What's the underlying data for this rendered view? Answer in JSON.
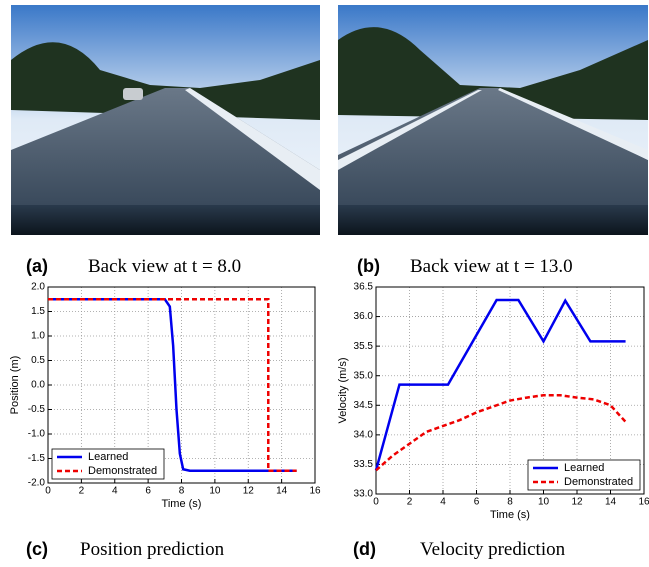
{
  "photos": [
    {
      "label": "(a)",
      "caption": "Back view at t = 8.0"
    },
    {
      "label": "(b)",
      "caption": "Back view at t = 13.0"
    }
  ],
  "chart_data": [
    {
      "type": "line",
      "label": "(c)",
      "caption": "Position prediction",
      "xlabel": "Time (s)",
      "ylabel": "Position (m)",
      "xlim": [
        0,
        16
      ],
      "xticks": [
        0,
        2,
        4,
        6,
        8,
        10,
        12,
        14,
        16
      ],
      "ylim": [
        -2,
        2
      ],
      "yticks": [
        {
          "value": -2,
          "label": "-2.0"
        },
        {
          "value": -1.5,
          "label": "-1.5"
        },
        {
          "value": -1,
          "label": "-1.0"
        },
        {
          "value": -0.5,
          "label": "-0.5"
        },
        {
          "value": 0,
          "label": "0.0"
        },
        {
          "value": 0.5,
          "label": "0.5"
        },
        {
          "value": 1,
          "label": "1.0"
        },
        {
          "value": 1.5,
          "label": "1.5"
        },
        {
          "value": 2,
          "label": "2.0"
        }
      ],
      "grid": true,
      "legend": "lower left",
      "series": [
        {
          "name": "Learned",
          "color": "#0000ee",
          "dash": false,
          "x": [
            0,
            7,
            7.3,
            7.5,
            7.7,
            7.9,
            8.1,
            8.5,
            14.9
          ],
          "values": [
            1.75,
            1.75,
            1.6,
            0.8,
            -0.5,
            -1.4,
            -1.72,
            -1.75,
            -1.75
          ]
        },
        {
          "name": "Demonstrated",
          "color": "#ee0000",
          "dash": true,
          "x": [
            0,
            13.2,
            13.2,
            14.9
          ],
          "values": [
            1.75,
            1.75,
            -1.75,
            -1.75
          ]
        }
      ]
    },
    {
      "type": "line",
      "label": "(d)",
      "caption": "Velocity prediction",
      "xlabel": "Time (s)",
      "ylabel": "Velocity (m/s)",
      "xlim": [
        0,
        16
      ],
      "xticks": [
        0,
        2,
        4,
        6,
        8,
        10,
        12,
        14,
        16
      ],
      "ylim": [
        33,
        36.5
      ],
      "yticks": [
        {
          "value": 33,
          "label": "33.0"
        },
        33.5,
        {
          "value": 34,
          "label": "34.0"
        },
        34.5,
        {
          "value": 35,
          "label": "35.0"
        },
        35.5,
        {
          "value": 36,
          "label": "36.0"
        },
        36.5
      ],
      "grid": true,
      "legend": "lower right",
      "series": [
        {
          "name": "Learned",
          "color": "#0000ee",
          "dash": false,
          "x": [
            0,
            1.4,
            4.3,
            7.2,
            8.5,
            10,
            11.3,
            12.8,
            14.9
          ],
          "values": [
            33.4,
            34.85,
            34.85,
            36.28,
            36.28,
            35.58,
            36.27,
            35.58,
            35.58
          ]
        },
        {
          "name": "Demonstrated",
          "color": "#ee0000",
          "dash": true,
          "x": [
            0,
            1,
            2,
            3,
            4,
            5,
            6,
            7,
            8,
            9,
            10,
            11,
            12,
            13,
            14,
            14.9
          ],
          "values": [
            33.4,
            33.65,
            33.85,
            34.05,
            34.15,
            34.25,
            34.38,
            34.48,
            34.58,
            34.63,
            34.67,
            34.67,
            34.63,
            34.6,
            34.5,
            34.22
          ]
        }
      ]
    }
  ]
}
